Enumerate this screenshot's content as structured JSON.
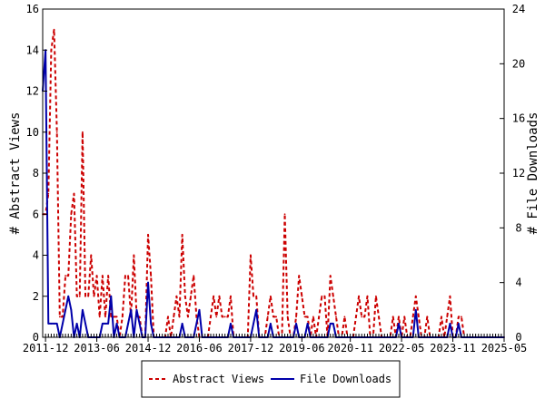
{
  "chart_data": {
    "type": "line",
    "title": "",
    "xlabel": "",
    "ylabel": "# Abstract Views",
    "y2label": "# File Downloads",
    "xlim": [
      "2011-11",
      "2025-05"
    ],
    "x_tick_labels": [
      "2011-12",
      "2013-06",
      "2014-12",
      "2016-06",
      "2017-12",
      "2019-06",
      "2020-11",
      "2022-05",
      "2023-11",
      "2025-05"
    ],
    "ylim": [
      0,
      16
    ],
    "y_ticks": [
      0,
      2,
      4,
      6,
      8,
      10,
      12,
      14,
      16
    ],
    "y2lim": [
      0,
      24
    ],
    "y2_ticks": [
      0,
      4,
      8,
      12,
      16,
      20,
      24
    ],
    "grid": false,
    "legend_position": "bottom",
    "series": [
      {
        "name": "Abstract Views",
        "axis": "left",
        "color": "#cc0000",
        "style": "dashed",
        "values": [
          [
            0,
            6
          ],
          [
            1,
            6
          ],
          [
            2,
            7
          ],
          [
            3,
            14
          ],
          [
            4,
            15
          ],
          [
            5,
            10
          ],
          [
            6,
            1
          ],
          [
            7,
            1
          ],
          [
            8,
            3
          ],
          [
            9,
            3
          ],
          [
            10,
            6
          ],
          [
            11,
            7
          ],
          [
            12,
            2
          ],
          [
            13,
            2
          ],
          [
            14,
            10
          ],
          [
            15,
            2
          ],
          [
            16,
            2
          ],
          [
            17,
            4
          ],
          [
            18,
            2
          ],
          [
            19,
            3
          ],
          [
            20,
            1
          ],
          [
            21,
            3
          ],
          [
            22,
            1
          ],
          [
            23,
            3
          ],
          [
            24,
            1
          ],
          [
            25,
            1
          ],
          [
            26,
            1
          ],
          [
            27,
            0
          ],
          [
            28,
            1
          ],
          [
            29,
            3
          ],
          [
            30,
            3
          ],
          [
            31,
            1
          ],
          [
            32,
            4
          ],
          [
            33,
            1
          ],
          [
            34,
            1
          ],
          [
            35,
            0
          ],
          [
            36,
            0
          ],
          [
            37,
            5
          ],
          [
            38,
            3
          ],
          [
            39,
            0
          ],
          [
            40,
            0
          ],
          [
            41,
            0
          ],
          [
            42,
            0
          ],
          [
            43,
            0
          ],
          [
            44,
            1
          ],
          [
            45,
            0
          ],
          [
            46,
            1
          ],
          [
            47,
            2
          ],
          [
            48,
            1
          ],
          [
            49,
            5
          ],
          [
            50,
            2
          ],
          [
            51,
            1
          ],
          [
            52,
            2
          ],
          [
            53,
            3
          ],
          [
            54,
            1
          ],
          [
            55,
            0
          ],
          [
            56,
            0
          ],
          [
            57,
            0
          ],
          [
            58,
            0
          ],
          [
            59,
            1
          ],
          [
            60,
            2
          ],
          [
            61,
            1
          ],
          [
            62,
            2
          ],
          [
            63,
            1
          ],
          [
            64,
            1
          ],
          [
            65,
            1
          ],
          [
            66,
            2
          ],
          [
            67,
            0
          ],
          [
            68,
            0
          ],
          [
            69,
            0
          ],
          [
            70,
            0
          ],
          [
            71,
            0
          ],
          [
            72,
            0
          ],
          [
            73,
            4
          ],
          [
            74,
            2
          ],
          [
            75,
            2
          ],
          [
            76,
            0
          ],
          [
            77,
            0
          ],
          [
            78,
            0
          ],
          [
            79,
            1
          ],
          [
            80,
            2
          ],
          [
            81,
            1
          ],
          [
            82,
            1
          ],
          [
            83,
            0
          ],
          [
            84,
            0
          ],
          [
            85,
            6
          ],
          [
            86,
            1
          ],
          [
            87,
            0
          ],
          [
            88,
            0
          ],
          [
            89,
            1
          ],
          [
            90,
            3
          ],
          [
            91,
            2
          ],
          [
            92,
            1
          ],
          [
            93,
            1
          ],
          [
            94,
            0
          ],
          [
            95,
            1
          ],
          [
            96,
            0
          ],
          [
            97,
            1
          ],
          [
            98,
            2
          ],
          [
            99,
            2
          ],
          [
            100,
            0
          ],
          [
            101,
            3
          ],
          [
            102,
            2
          ],
          [
            103,
            1
          ],
          [
            104,
            0
          ],
          [
            105,
            0
          ],
          [
            106,
            1
          ],
          [
            107,
            0
          ],
          [
            108,
            0
          ],
          [
            109,
            0
          ],
          [
            110,
            1
          ],
          [
            111,
            2
          ],
          [
            112,
            1
          ],
          [
            113,
            1
          ],
          [
            114,
            2
          ],
          [
            115,
            0
          ],
          [
            116,
            0
          ],
          [
            117,
            2
          ],
          [
            118,
            1
          ],
          [
            119,
            0
          ],
          [
            120,
            0
          ],
          [
            121,
            0
          ],
          [
            122,
            0
          ],
          [
            123,
            1
          ],
          [
            124,
            0
          ],
          [
            125,
            1
          ],
          [
            126,
            0
          ],
          [
            127,
            1
          ],
          [
            128,
            0
          ],
          [
            129,
            0
          ],
          [
            130,
            1
          ],
          [
            131,
            2
          ],
          [
            132,
            1
          ],
          [
            133,
            0
          ],
          [
            134,
            0
          ],
          [
            135,
            1
          ],
          [
            136,
            0
          ],
          [
            137,
            0
          ],
          [
            138,
            0
          ],
          [
            139,
            0
          ],
          [
            140,
            1
          ],
          [
            141,
            0
          ],
          [
            142,
            1
          ],
          [
            143,
            2
          ],
          [
            144,
            0
          ],
          [
            145,
            0
          ],
          [
            146,
            1
          ],
          [
            147,
            1
          ],
          [
            148,
            0
          ],
          [
            149,
            0
          ],
          [
            150,
            0
          ],
          [
            151,
            0
          ],
          [
            152,
            0
          ],
          [
            153,
            0
          ],
          [
            154,
            0
          ],
          [
            155,
            0
          ],
          [
            156,
            0
          ],
          [
            157,
            0
          ],
          [
            158,
            0
          ],
          [
            159,
            0
          ],
          [
            160,
            0
          ],
          [
            161,
            0
          ],
          [
            162,
            0
          ]
        ]
      },
      {
        "name": "File Downloads",
        "axis": "right",
        "color": "#0000aa",
        "style": "solid",
        "values": [
          [
            0,
            18
          ],
          [
            1,
            21
          ],
          [
            2,
            1
          ],
          [
            3,
            1
          ],
          [
            4,
            1
          ],
          [
            5,
            1
          ],
          [
            6,
            0
          ],
          [
            7,
            1
          ],
          [
            8,
            2
          ],
          [
            9,
            3
          ],
          [
            10,
            2
          ],
          [
            11,
            0
          ],
          [
            12,
            1
          ],
          [
            13,
            0
          ],
          [
            14,
            2
          ],
          [
            15,
            1
          ],
          [
            16,
            0
          ],
          [
            17,
            0
          ],
          [
            18,
            0
          ],
          [
            19,
            0
          ],
          [
            20,
            0
          ],
          [
            21,
            1
          ],
          [
            22,
            1
          ],
          [
            23,
            1
          ],
          [
            24,
            3
          ],
          [
            25,
            0
          ],
          [
            26,
            1
          ],
          [
            27,
            0
          ],
          [
            28,
            0
          ],
          [
            29,
            0
          ],
          [
            30,
            1
          ],
          [
            31,
            2
          ],
          [
            32,
            0
          ],
          [
            33,
            2
          ],
          [
            34,
            1
          ],
          [
            35,
            0
          ],
          [
            36,
            0
          ],
          [
            37,
            4
          ],
          [
            38,
            1
          ],
          [
            39,
            0
          ],
          [
            40,
            0
          ],
          [
            41,
            0
          ],
          [
            42,
            0
          ],
          [
            43,
            0
          ],
          [
            44,
            0
          ],
          [
            45,
            0
          ],
          [
            46,
            0
          ],
          [
            47,
            0
          ],
          [
            48,
            0
          ],
          [
            49,
            1
          ],
          [
            50,
            0
          ],
          [
            51,
            0
          ],
          [
            52,
            0
          ],
          [
            53,
            0
          ],
          [
            54,
            1
          ],
          [
            55,
            2
          ],
          [
            56,
            0
          ],
          [
            57,
            0
          ],
          [
            58,
            0
          ],
          [
            59,
            0
          ],
          [
            60,
            0
          ],
          [
            61,
            0
          ],
          [
            62,
            0
          ],
          [
            63,
            0
          ],
          [
            64,
            0
          ],
          [
            65,
            0
          ],
          [
            66,
            1
          ],
          [
            67,
            0
          ],
          [
            68,
            0
          ],
          [
            69,
            0
          ],
          [
            70,
            0
          ],
          [
            71,
            0
          ],
          [
            72,
            0
          ],
          [
            73,
            0
          ],
          [
            74,
            1
          ],
          [
            75,
            2
          ],
          [
            76,
            0
          ],
          [
            77,
            0
          ],
          [
            78,
            0
          ],
          [
            79,
            0
          ],
          [
            80,
            1
          ],
          [
            81,
            0
          ],
          [
            82,
            0
          ],
          [
            83,
            0
          ],
          [
            84,
            0
          ],
          [
            85,
            0
          ],
          [
            86,
            0
          ],
          [
            87,
            0
          ],
          [
            88,
            0
          ],
          [
            89,
            1
          ],
          [
            90,
            0
          ],
          [
            91,
            0
          ],
          [
            92,
            0
          ],
          [
            93,
            1
          ],
          [
            94,
            0
          ],
          [
            95,
            0
          ],
          [
            96,
            0
          ],
          [
            97,
            0
          ],
          [
            98,
            0
          ],
          [
            99,
            0
          ],
          [
            100,
            0
          ],
          [
            101,
            1
          ],
          [
            102,
            1
          ],
          [
            103,
            0
          ],
          [
            104,
            0
          ],
          [
            105,
            0
          ],
          [
            106,
            0
          ],
          [
            107,
            0
          ],
          [
            108,
            0
          ],
          [
            109,
            0
          ],
          [
            110,
            0
          ],
          [
            111,
            0
          ],
          [
            112,
            0
          ],
          [
            113,
            0
          ],
          [
            114,
            0
          ],
          [
            115,
            0
          ],
          [
            116,
            0
          ],
          [
            117,
            0
          ],
          [
            118,
            0
          ],
          [
            119,
            0
          ],
          [
            120,
            0
          ],
          [
            121,
            0
          ],
          [
            122,
            0
          ],
          [
            123,
            0
          ],
          [
            124,
            0
          ],
          [
            125,
            1
          ],
          [
            126,
            0
          ],
          [
            127,
            0
          ],
          [
            128,
            0
          ],
          [
            129,
            0
          ],
          [
            130,
            0
          ],
          [
            131,
            2
          ],
          [
            132,
            0
          ],
          [
            133,
            0
          ],
          [
            134,
            0
          ],
          [
            135,
            0
          ],
          [
            136,
            0
          ],
          [
            137,
            0
          ],
          [
            138,
            0
          ],
          [
            139,
            0
          ],
          [
            140,
            0
          ],
          [
            141,
            0
          ],
          [
            142,
            0
          ],
          [
            143,
            1
          ],
          [
            144,
            0
          ],
          [
            145,
            0
          ],
          [
            146,
            1
          ],
          [
            147,
            0
          ],
          [
            148,
            0
          ],
          [
            149,
            0
          ],
          [
            150,
            0
          ],
          [
            151,
            0
          ],
          [
            152,
            0
          ],
          [
            153,
            0
          ],
          [
            154,
            0
          ],
          [
            155,
            0
          ],
          [
            156,
            0
          ],
          [
            157,
            0
          ],
          [
            158,
            0
          ],
          [
            159,
            0
          ],
          [
            160,
            0
          ],
          [
            161,
            0
          ],
          [
            162,
            0
          ]
        ]
      }
    ]
  },
  "legend": {
    "items": [
      {
        "label": "Abstract Views",
        "color": "#cc0000",
        "style": "dashed"
      },
      {
        "label": "File Downloads",
        "color": "#0000aa",
        "style": "solid"
      }
    ]
  }
}
